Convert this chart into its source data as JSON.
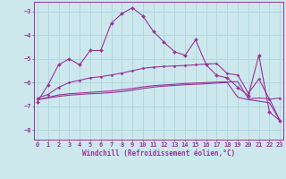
{
  "x": [
    0,
    1,
    2,
    3,
    4,
    5,
    6,
    7,
    8,
    9,
    10,
    11,
    12,
    13,
    14,
    15,
    16,
    17,
    18,
    19,
    20,
    21,
    22,
    23
  ],
  "line_main": [
    -6.8,
    -6.1,
    -5.25,
    -5.0,
    -5.25,
    -4.65,
    -4.65,
    -3.5,
    -3.1,
    -2.85,
    -3.2,
    -3.85,
    -4.3,
    -4.7,
    -4.85,
    -4.2,
    -5.25,
    -5.7,
    -5.8,
    -6.2,
    -6.55,
    -4.85,
    -7.25,
    -7.6
  ],
  "line_band1": [
    -6.65,
    -6.5,
    -6.2,
    -6.0,
    -5.9,
    -5.8,
    -5.75,
    -5.68,
    -5.6,
    -5.5,
    -5.4,
    -5.35,
    -5.32,
    -5.3,
    -5.28,
    -5.25,
    -5.22,
    -5.2,
    -5.62,
    -5.68,
    -6.45,
    -5.85,
    -6.7,
    -6.65
  ],
  "line_band2": [
    -6.72,
    -6.62,
    -6.52,
    -6.47,
    -6.44,
    -6.41,
    -6.38,
    -6.35,
    -6.3,
    -6.25,
    -6.18,
    -6.13,
    -6.1,
    -6.07,
    -6.04,
    -6.02,
    -6.0,
    -5.98,
    -5.97,
    -5.96,
    -6.68,
    -6.65,
    -6.68,
    -7.6
  ],
  "line_bot": [
    -6.72,
    -6.65,
    -6.58,
    -6.53,
    -6.5,
    -6.47,
    -6.45,
    -6.42,
    -6.38,
    -6.32,
    -6.25,
    -6.19,
    -6.15,
    -6.12,
    -6.09,
    -6.07,
    -6.05,
    -6.02,
    -6.0,
    -6.62,
    -6.72,
    -6.78,
    -6.85,
    -7.6
  ],
  "background": "#cce8ed",
  "grid_color": "#b0d8dd",
  "line_color": "#993399",
  "xlabel": "Windchill (Refroidissement éolien,°C)",
  "ylim": [
    -8.4,
    -2.6
  ],
  "xlim": [
    -0.3,
    23.3
  ],
  "yticks": [
    -8,
    -7,
    -6,
    -5,
    -4,
    -3
  ],
  "xticks": [
    0,
    1,
    2,
    3,
    4,
    5,
    6,
    7,
    8,
    9,
    10,
    11,
    12,
    13,
    14,
    15,
    16,
    17,
    18,
    19,
    20,
    21,
    22,
    23
  ]
}
